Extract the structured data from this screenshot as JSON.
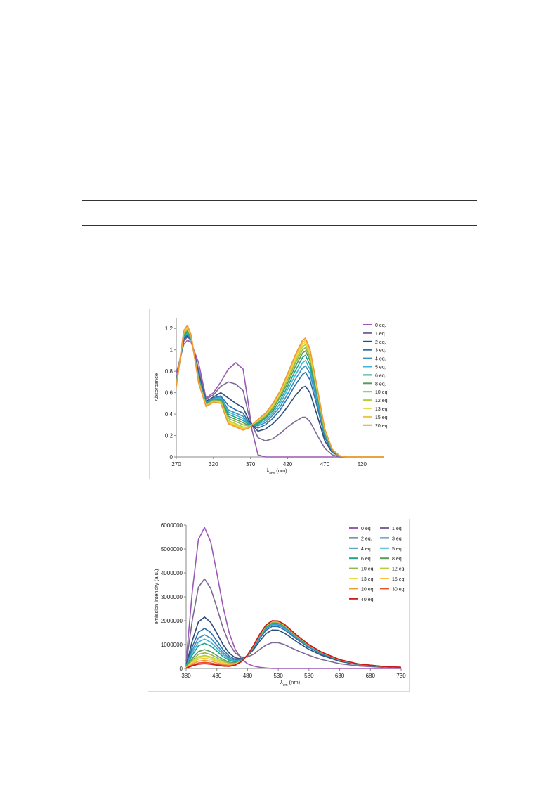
{
  "charts": [
    {
      "type": "line",
      "ylabel": "Absorbance",
      "xlabel_main": "λ",
      "xlabel_sub": "abs",
      "xlabel_unit": " (nm)",
      "xlim": [
        270,
        550
      ],
      "ylim": [
        0,
        1.3
      ],
      "xticks": [
        270,
        320,
        370,
        420,
        470,
        520
      ],
      "yticks": [
        0,
        0.2,
        0.4,
        0.6,
        0.8,
        1,
        1.2
      ],
      "ytick_labels": [
        "0",
        "0.2",
        "0.4",
        "0.6",
        "0.8",
        "1",
        "1.2"
      ],
      "legend": [
        "0 eq.",
        "1 eq.",
        "2 eq.",
        "3 eq.",
        "4 eq.",
        "5 eq.",
        "6 eq.",
        "8 eq.",
        "10 eq.",
        "12 eq.",
        "13 eq.",
        "15 eq.",
        "20 eq."
      ],
      "colors": [
        "#9b59b6",
        "#7d6a94",
        "#2c4a7a",
        "#2a6fa8",
        "#3a8fc4",
        "#3fb3d4",
        "#1fa58a",
        "#5a9a5a",
        "#8fb84a",
        "#b3cf3a",
        "#e8e040",
        "#f5c242",
        "#f0983a"
      ],
      "x": [
        270,
        280,
        285,
        290,
        300,
        310,
        320,
        330,
        340,
        350,
        360,
        368,
        372,
        380,
        390,
        400,
        410,
        420,
        430,
        440,
        444,
        450,
        460,
        470,
        480,
        490,
        500,
        550
      ],
      "series": [
        {
          "name": "0 eq.",
          "values": [
            0.78,
            1.05,
            1.09,
            1.07,
            0.88,
            0.55,
            0.6,
            0.7,
            0.82,
            0.88,
            0.82,
            0.45,
            0.25,
            0.02,
            0.0,
            0.0,
            0.0,
            0.0,
            0.0,
            0.0,
            0.0,
            0.0,
            0.0,
            0.0,
            0.0,
            0.0,
            0.0,
            0.0
          ]
        },
        {
          "name": "1 eq.",
          "values": [
            0.72,
            1.08,
            1.12,
            1.09,
            0.82,
            0.54,
            0.58,
            0.66,
            0.7,
            0.68,
            0.62,
            0.38,
            0.3,
            0.18,
            0.15,
            0.17,
            0.22,
            0.28,
            0.33,
            0.37,
            0.37,
            0.33,
            0.2,
            0.08,
            0.02,
            0.0,
            0.0,
            0.0
          ]
        },
        {
          "name": "2 eq.",
          "values": [
            0.7,
            1.1,
            1.13,
            1.1,
            0.78,
            0.52,
            0.56,
            0.6,
            0.55,
            0.5,
            0.46,
            0.34,
            0.3,
            0.24,
            0.26,
            0.31,
            0.38,
            0.47,
            0.57,
            0.65,
            0.66,
            0.6,
            0.38,
            0.15,
            0.04,
            0.01,
            0.0,
            0.0
          ]
        },
        {
          "name": "3 eq.",
          "values": [
            0.69,
            1.11,
            1.14,
            1.1,
            0.76,
            0.51,
            0.55,
            0.57,
            0.48,
            0.44,
            0.41,
            0.32,
            0.3,
            0.27,
            0.3,
            0.36,
            0.44,
            0.55,
            0.67,
            0.77,
            0.79,
            0.72,
            0.46,
            0.18,
            0.05,
            0.01,
            0.0,
            0.0
          ]
        },
        {
          "name": "4 eq.",
          "values": [
            0.69,
            1.12,
            1.15,
            1.1,
            0.75,
            0.51,
            0.55,
            0.56,
            0.44,
            0.41,
            0.38,
            0.31,
            0.3,
            0.29,
            0.32,
            0.39,
            0.47,
            0.59,
            0.72,
            0.83,
            0.85,
            0.78,
            0.5,
            0.2,
            0.05,
            0.01,
            0.0,
            0.0
          ]
        },
        {
          "name": "5 eq.",
          "values": [
            0.68,
            1.12,
            1.16,
            1.11,
            0.74,
            0.5,
            0.54,
            0.55,
            0.42,
            0.39,
            0.36,
            0.3,
            0.3,
            0.3,
            0.34,
            0.41,
            0.5,
            0.63,
            0.76,
            0.88,
            0.9,
            0.82,
            0.53,
            0.21,
            0.06,
            0.01,
            0.0,
            0.0
          ]
        },
        {
          "name": "6 eq.",
          "values": [
            0.68,
            1.13,
            1.17,
            1.11,
            0.73,
            0.5,
            0.54,
            0.54,
            0.4,
            0.37,
            0.34,
            0.3,
            0.3,
            0.31,
            0.36,
            0.43,
            0.53,
            0.66,
            0.8,
            0.93,
            0.95,
            0.86,
            0.56,
            0.22,
            0.06,
            0.01,
            0.0,
            0.0
          ]
        },
        {
          "name": "8 eq.",
          "values": [
            0.67,
            1.14,
            1.18,
            1.12,
            0.72,
            0.49,
            0.53,
            0.53,
            0.38,
            0.35,
            0.32,
            0.29,
            0.3,
            0.32,
            0.37,
            0.45,
            0.56,
            0.69,
            0.84,
            0.97,
            0.99,
            0.9,
            0.58,
            0.23,
            0.06,
            0.01,
            0.0,
            0.0
          ]
        },
        {
          "name": "10 eq.",
          "values": [
            0.67,
            1.15,
            1.19,
            1.12,
            0.71,
            0.49,
            0.53,
            0.52,
            0.36,
            0.33,
            0.3,
            0.29,
            0.3,
            0.33,
            0.38,
            0.46,
            0.58,
            0.72,
            0.87,
            1.0,
            1.02,
            0.93,
            0.6,
            0.24,
            0.07,
            0.01,
            0.0,
            0.0
          ]
        },
        {
          "name": "12 eq.",
          "values": [
            0.66,
            1.16,
            1.2,
            1.13,
            0.71,
            0.48,
            0.52,
            0.51,
            0.34,
            0.31,
            0.28,
            0.28,
            0.3,
            0.34,
            0.39,
            0.47,
            0.59,
            0.74,
            0.89,
            1.03,
            1.05,
            0.95,
            0.61,
            0.25,
            0.07,
            0.01,
            0.0,
            0.0
          ]
        },
        {
          "name": "13 eq.",
          "values": [
            0.66,
            1.16,
            1.21,
            1.13,
            0.7,
            0.48,
            0.52,
            0.51,
            0.33,
            0.3,
            0.27,
            0.28,
            0.3,
            0.34,
            0.4,
            0.48,
            0.6,
            0.75,
            0.91,
            1.05,
            1.07,
            0.97,
            0.62,
            0.25,
            0.07,
            0.01,
            0.0,
            0.0
          ]
        },
        {
          "name": "15 eq.",
          "values": [
            0.65,
            1.17,
            1.22,
            1.14,
            0.7,
            0.48,
            0.52,
            0.5,
            0.32,
            0.29,
            0.26,
            0.28,
            0.3,
            0.35,
            0.4,
            0.49,
            0.61,
            0.76,
            0.93,
            1.07,
            1.09,
            0.99,
            0.63,
            0.26,
            0.07,
            0.01,
            0.0,
            0.0
          ]
        },
        {
          "name": "20 eq.",
          "values": [
            0.65,
            1.18,
            1.23,
            1.14,
            0.69,
            0.47,
            0.51,
            0.5,
            0.31,
            0.28,
            0.25,
            0.27,
            0.3,
            0.35,
            0.41,
            0.5,
            0.62,
            0.78,
            0.95,
            1.09,
            1.11,
            1.01,
            0.64,
            0.26,
            0.07,
            0.01,
            0.0,
            0.0
          ]
        }
      ]
    },
    {
      "type": "line",
      "ylabel": "emission intensity (a.u.)",
      "xlabel_main": "λ",
      "xlabel_sub": "em",
      "xlabel_unit": " (nm)",
      "xlim": [
        380,
        730
      ],
      "ylim": [
        0,
        6000000
      ],
      "xticks": [
        380,
        430,
        480,
        530,
        580,
        630,
        680,
        730
      ],
      "yticks": [
        0,
        1000000,
        2000000,
        3000000,
        4000000,
        5000000,
        6000000
      ],
      "ytick_labels": [
        "0",
        "1000000",
        "2000000",
        "3000000",
        "4000000",
        "5000000",
        "6000000"
      ],
      "legend": [
        "0 eq",
        "1 eq.",
        "2 eq.",
        "3 eq.",
        "4 eq.",
        "5 eq.",
        "6 eq.",
        "8 eq.",
        "10 eq.",
        "12 eq.",
        "13 eq.",
        "15 eq.",
        "20  eq.",
        "30 eq.",
        "40 eq."
      ],
      "colors": [
        "#9b59b6",
        "#7d6a94",
        "#2c4a7a",
        "#2a6fa8",
        "#3a8fc4",
        "#3fb3d4",
        "#1fa58a",
        "#5a9a5a",
        "#8fb84a",
        "#b3cf3a",
        "#e8e040",
        "#f5c242",
        "#f0983a",
        "#e8502a",
        "#cc1a1a"
      ],
      "x": [
        380,
        390,
        400,
        410,
        420,
        430,
        440,
        450,
        460,
        470,
        480,
        490,
        500,
        510,
        520,
        530,
        540,
        550,
        560,
        580,
        600,
        630,
        660,
        700,
        730
      ],
      "series": [
        {
          "name": "0 eq",
          "values": [
            300000,
            3200000,
            5400000,
            5900000,
            5300000,
            4000000,
            2600000,
            1500000,
            800000,
            400000,
            200000,
            100000,
            50000,
            20000,
            0,
            0,
            0,
            0,
            0,
            0,
            0,
            0,
            0,
            0,
            0
          ]
        },
        {
          "name": "1 eq.",
          "values": [
            200000,
            2000000,
            3400000,
            3750000,
            3350000,
            2550000,
            1700000,
            1050000,
            650000,
            480000,
            480000,
            600000,
            800000,
            980000,
            1080000,
            1080000,
            1000000,
            880000,
            760000,
            550000,
            380000,
            200000,
            110000,
            50000,
            30000
          ]
        },
        {
          "name": "2 eq.",
          "values": [
            120000,
            1150000,
            1950000,
            2150000,
            1930000,
            1480000,
            1000000,
            650000,
            450000,
            400000,
            520000,
            800000,
            1150000,
            1460000,
            1610000,
            1600000,
            1480000,
            1310000,
            1120000,
            800000,
            560000,
            300000,
            160000,
            70000,
            40000
          ]
        },
        {
          "name": "3 eq.",
          "values": [
            95000,
            900000,
            1520000,
            1680000,
            1510000,
            1160000,
            790000,
            520000,
            380000,
            370000,
            530000,
            860000,
            1260000,
            1600000,
            1760000,
            1750000,
            1620000,
            1430000,
            1230000,
            880000,
            610000,
            330000,
            170000,
            75000,
            45000
          ]
        },
        {
          "name": "4 eq.",
          "values": [
            80000,
            760000,
            1280000,
            1410000,
            1270000,
            975000,
            670000,
            445000,
            335000,
            355000,
            540000,
            890000,
            1310000,
            1660000,
            1830000,
            1820000,
            1690000,
            1490000,
            1280000,
            910000,
            635000,
            340000,
            175000,
            78000,
            46000
          ]
        },
        {
          "name": "5 eq.",
          "values": [
            70000,
            660000,
            1110000,
            1230000,
            1100000,
            850000,
            585000,
            390000,
            305000,
            345000,
            545000,
            910000,
            1340000,
            1700000,
            1870000,
            1860000,
            1730000,
            1520000,
            1310000,
            930000,
            650000,
            350000,
            180000,
            80000,
            47000
          ]
        },
        {
          "name": "6 eq.",
          "values": [
            60000,
            560000,
            950000,
            1050000,
            940000,
            725000,
            500000,
            340000,
            275000,
            335000,
            550000,
            925000,
            1370000,
            1730000,
            1900000,
            1890000,
            1760000,
            1550000,
            1330000,
            950000,
            660000,
            355000,
            182000,
            81000,
            48000
          ]
        },
        {
          "name": "8 eq.",
          "values": [
            45000,
            420000,
            710000,
            790000,
            705000,
            545000,
            380000,
            265000,
            235000,
            320000,
            555000,
            940000,
            1390000,
            1760000,
            1930000,
            1920000,
            1790000,
            1570000,
            1350000,
            965000,
            670000,
            360000,
            185000,
            82000,
            48000
          ]
        },
        {
          "name": "10 eq.",
          "values": [
            38000,
            350000,
            590000,
            655000,
            585000,
            452000,
            318000,
            225000,
            213000,
            312000,
            558000,
            948000,
            1400000,
            1775000,
            1950000,
            1940000,
            1805000,
            1585000,
            1360000,
            972000,
            675000,
            362000,
            186000,
            83000,
            49000
          ]
        },
        {
          "name": "12 eq.",
          "values": [
            32000,
            290000,
            490000,
            545000,
            487000,
            377000,
            267000,
            193000,
            195000,
            305000,
            560000,
            955000,
            1410000,
            1785000,
            1960000,
            1950000,
            1815000,
            1595000,
            1370000,
            978000,
            680000,
            365000,
            187000,
            83000,
            49000
          ]
        },
        {
          "name": "13 eq.",
          "values": [
            29000,
            265000,
            450000,
            500000,
            447000,
            346000,
            246000,
            180000,
            188000,
            302000,
            561000,
            958000,
            1415000,
            1790000,
            1965000,
            1955000,
            1820000,
            1600000,
            1372000,
            980000,
            682000,
            366000,
            187000,
            84000,
            49000
          ]
        },
        {
          "name": "15 eq.",
          "values": [
            25000,
            230000,
            390000,
            432000,
            386000,
            299000,
            214000,
            160000,
            177000,
            298000,
            562000,
            962000,
            1420000,
            1797000,
            1972000,
            1962000,
            1826000,
            1605000,
            1376000,
            983000,
            684000,
            367000,
            188000,
            84000,
            50000
          ]
        },
        {
          "name": "20  eq.",
          "values": [
            20000,
            180000,
            305000,
            340000,
            304000,
            236000,
            170000,
            133000,
            162000,
            293000,
            564000,
            967000,
            1428000,
            1806000,
            1982000,
            1972000,
            1835000,
            1612000,
            1382000,
            987000,
            687000,
            368000,
            189000,
            84000,
            50000
          ]
        },
        {
          "name": "30 eq.",
          "values": [
            15000,
            135000,
            230000,
            255000,
            228000,
            177000,
            128000,
            106000,
            148000,
            288000,
            566000,
            972000,
            1435000,
            1815000,
            1992000,
            1982000,
            1844000,
            1620000,
            1388000,
            991000,
            690000,
            370000,
            190000,
            85000,
            50000
          ]
        },
        {
          "name": "40 eq.",
          "values": [
            12000,
            105000,
            180000,
            200000,
            179000,
            139000,
            101000,
            88000,
            138000,
            285000,
            568000,
            976000,
            1440000,
            1822000,
            2000000,
            1990000,
            1851000,
            1626000,
            1393000,
            995000,
            692000,
            371000,
            190000,
            85000,
            50000
          ]
        }
      ]
    }
  ]
}
